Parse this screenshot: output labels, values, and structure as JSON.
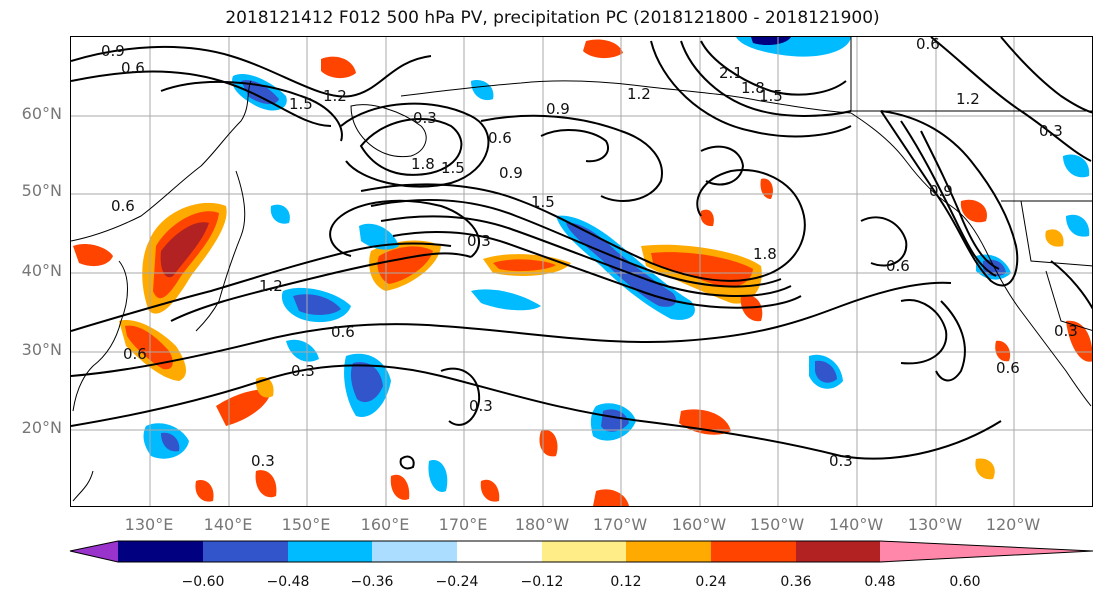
{
  "title": "2018121412 F012 500 hPa PV, precipitation PC (2018121800 - 2018121900)",
  "lat_labels": [
    "60°N",
    "50°N",
    "40°N",
    "30°N",
    "20°N"
  ],
  "lon_labels": [
    "130°E",
    "140°E",
    "150°E",
    "160°E",
    "170°E",
    "180°W",
    "170°W",
    "160°W",
    "150°W",
    "140°W",
    "130°W",
    "120°W"
  ],
  "colorbar": {
    "ticks": [
      "−0.60",
      "−0.48",
      "−0.36",
      "−0.24",
      "−0.12",
      "0.12",
      "0.24",
      "0.36",
      "0.48",
      "0.60"
    ],
    "colors": [
      "#9933cc",
      "#000080",
      "#3355cc",
      "#00bbff",
      "#aaddff",
      "#ffffff",
      "#ffee88",
      "#ffaa00",
      "#ff4400",
      "#b22222",
      "#ff88aa"
    ]
  },
  "contour_labels": [
    "0.9",
    "0.6",
    "1.5",
    "1.2",
    "0.3",
    "0.6",
    "1.8",
    "1.5",
    "0.9",
    "1.5",
    "0.3",
    "0.6",
    "0.9",
    "1.2",
    "2.1",
    "1.8",
    "1.5",
    "0.6",
    "1.2",
    "0.6",
    "0.3",
    "0.6",
    "0.3",
    "0.3",
    "0.3",
    "0.6",
    "0.3",
    "0.6",
    "1.2",
    "0.9",
    "0.3",
    "1.8"
  ]
}
